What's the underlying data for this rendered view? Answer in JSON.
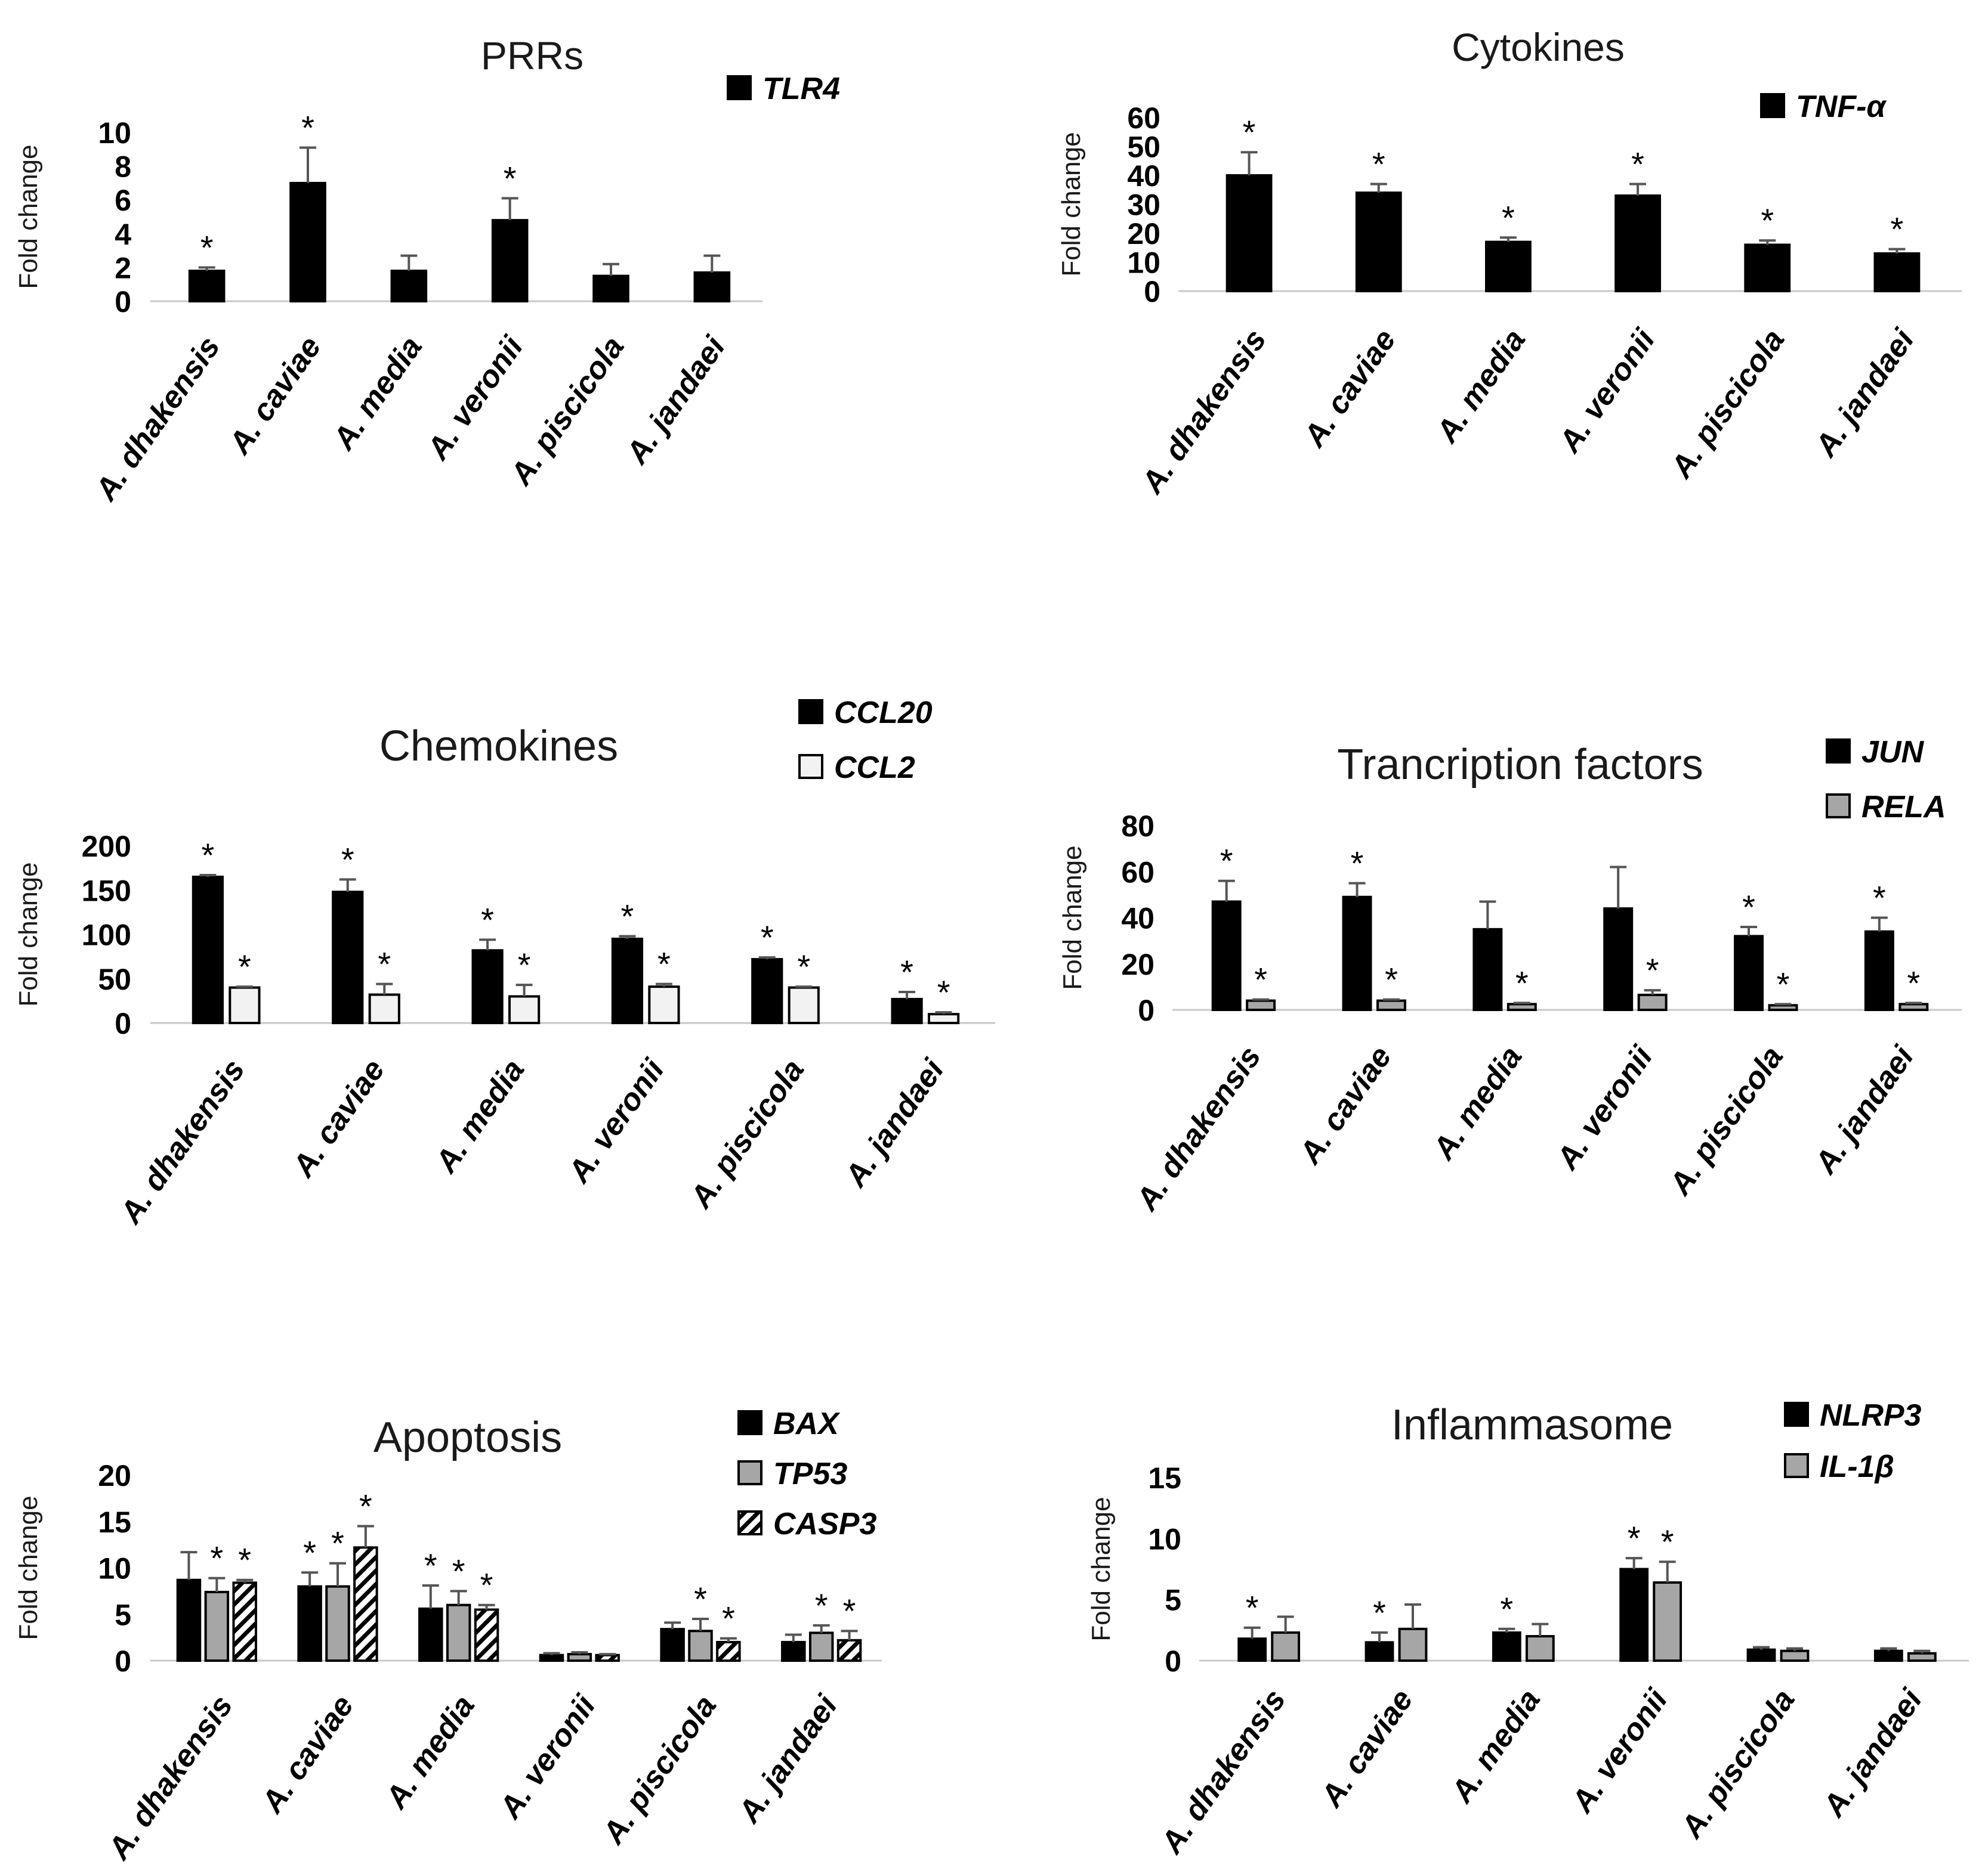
{
  "chart_data": [
    {
      "type": "bar",
      "title": "PRRs",
      "ylabel": "Fold change",
      "xlabel": "",
      "categories": [
        "A. dhakensis",
        "A. caviae",
        "A. media",
        "A. veronii",
        "A. piscicola",
        "A. jandaei"
      ],
      "yticks": [
        "0",
        "2",
        "4",
        "6",
        "8",
        "10"
      ],
      "ylim": [
        0,
        10
      ],
      "series": [
        {
          "name": "TLR4",
          "pattern": "solid",
          "color": "#000000",
          "values": [
            1.8,
            7.0,
            1.8,
            4.8,
            1.5,
            1.7
          ],
          "errors": [
            0.2,
            2.1,
            0.9,
            1.3,
            0.7,
            1.0
          ],
          "significant": [
            true,
            true,
            false,
            true,
            false,
            false
          ]
        }
      ]
    },
    {
      "type": "bar",
      "title": "Cytokines",
      "ylabel": "Fold change",
      "xlabel": "",
      "categories": [
        "A. dhakensis",
        "A. caviae",
        "A. media",
        "A. veronii",
        "A. piscicola",
        "A. jandaei"
      ],
      "yticks": [
        "0",
        "10",
        "20",
        "30",
        "40",
        "50",
        "60"
      ],
      "ylim": [
        0,
        60
      ],
      "series": [
        {
          "name": "TNF-α",
          "pattern": "solid",
          "color": "#000000",
          "values": [
            40,
            34,
            17,
            33,
            16,
            13
          ],
          "errors": [
            8,
            3,
            1.5,
            4,
            1.5,
            1.5
          ],
          "significant": [
            true,
            true,
            true,
            true,
            true,
            true
          ]
        }
      ]
    },
    {
      "type": "bar",
      "title": "Chemokines",
      "ylabel": "Fold change",
      "xlabel": "",
      "categories": [
        "A. dhakensis",
        "A. caviae",
        "A. media",
        "A. veronii",
        "A. piscicola",
        "A. jandaei"
      ],
      "yticks": [
        "0",
        "50",
        "100",
        "150",
        "200"
      ],
      "ylim": [
        0,
        200
      ],
      "series": [
        {
          "name": "CCL20",
          "pattern": "solid",
          "color": "#000000",
          "values": [
            165,
            148,
            82,
            95,
            72,
            27
          ],
          "errors": [
            2,
            14,
            12,
            3,
            2,
            8
          ],
          "significant": [
            true,
            true,
            true,
            true,
            true,
            true
          ]
        },
        {
          "name": "CCL2",
          "pattern": "white",
          "color": "#f2f2f2",
          "values": [
            40,
            32,
            30,
            41,
            40,
            10
          ],
          "errors": [
            1,
            12,
            13,
            3,
            1,
            2
          ],
          "significant": [
            true,
            true,
            true,
            true,
            true,
            true
          ]
        }
      ]
    },
    {
      "type": "bar",
      "title": "Trancription factors",
      "ylabel": "Fold change",
      "xlabel": "",
      "categories": [
        "A. dhakensis",
        "A. caviae",
        "A. media",
        "A. veronii",
        "A. piscicola",
        "A. jandaei"
      ],
      "yticks": [
        "0",
        "20",
        "40",
        "60",
        "80"
      ],
      "ylim": [
        0,
        80
      ],
      "series": [
        {
          "name": "JUN",
          "pattern": "solid",
          "color": "#000000",
          "values": [
            47,
            49,
            35,
            44,
            32,
            34
          ],
          "errors": [
            9,
            6,
            12,
            18,
            4,
            6
          ],
          "significant": [
            true,
            true,
            false,
            false,
            true,
            true
          ]
        },
        {
          "name": "RELA",
          "pattern": "gray",
          "color": "#a6a6a6",
          "values": [
            4,
            4,
            2.5,
            6.5,
            2,
            2.5
          ],
          "errors": [
            0.5,
            0.5,
            0.5,
            2,
            0.5,
            0.5
          ],
          "significant": [
            true,
            true,
            true,
            true,
            true,
            true
          ]
        }
      ]
    },
    {
      "type": "bar",
      "title": "Apoptosis",
      "ylabel": "Fold change",
      "xlabel": "",
      "categories": [
        "A. dhakensis",
        "A. caviae",
        "A. media",
        "A. veronii",
        "A. piscicola",
        "A. jandaei"
      ],
      "yticks": [
        "0",
        "5",
        "10",
        "15",
        "20"
      ],
      "ylim": [
        0,
        20
      ],
      "series": [
        {
          "name": "BAX",
          "pattern": "solid",
          "color": "#000000",
          "values": [
            8.7,
            8.0,
            5.6,
            0.6,
            3.4,
            2.0
          ],
          "errors": [
            3.0,
            1.5,
            2.5,
            0.2,
            0.7,
            0.8
          ],
          "significant": [
            false,
            true,
            true,
            false,
            false,
            false
          ]
        },
        {
          "name": "TP53",
          "pattern": "gray",
          "color": "#a6a6a6",
          "values": [
            7.4,
            8.0,
            6.0,
            0.7,
            3.2,
            3.0
          ],
          "errors": [
            1.5,
            2.5,
            1.5,
            0.2,
            1.3,
            0.8
          ],
          "significant": [
            true,
            true,
            true,
            false,
            true,
            true
          ]
        },
        {
          "name": "CASP3",
          "pattern": "hatch",
          "color": "#000000",
          "values": [
            8.4,
            12.2,
            5.5,
            0.6,
            2.0,
            2.2
          ],
          "errors": [
            0.3,
            2.3,
            0.5,
            0.1,
            0.4,
            1.0
          ],
          "significant": [
            true,
            true,
            true,
            false,
            true,
            true
          ]
        }
      ]
    },
    {
      "type": "bar",
      "title": "Inflammasome",
      "ylabel": "Fold change",
      "xlabel": "",
      "categories": [
        "A. dhakensis",
        "A. caviae",
        "A. media",
        "A. veronii",
        "A. piscicola",
        "A. jandaei"
      ],
      "yticks": [
        "0",
        "5",
        "10",
        "15"
      ],
      "ylim": [
        0,
        15
      ],
      "series": [
        {
          "name": "NLRP3",
          "pattern": "solid",
          "color": "#000000",
          "values": [
            1.8,
            1.5,
            2.3,
            7.5,
            0.9,
            0.8
          ],
          "errors": [
            0.9,
            0.8,
            0.3,
            0.9,
            0.2,
            0.2
          ],
          "significant": [
            true,
            true,
            true,
            true,
            false,
            false
          ]
        },
        {
          "name": "IL-1β",
          "pattern": "gray",
          "color": "#a6a6a6",
          "values": [
            2.3,
            2.6,
            2.0,
            6.4,
            0.8,
            0.6
          ],
          "errors": [
            1.3,
            2.0,
            1.0,
            1.7,
            0.2,
            0.2
          ],
          "significant": [
            false,
            false,
            false,
            true,
            false,
            false
          ]
        }
      ]
    }
  ]
}
